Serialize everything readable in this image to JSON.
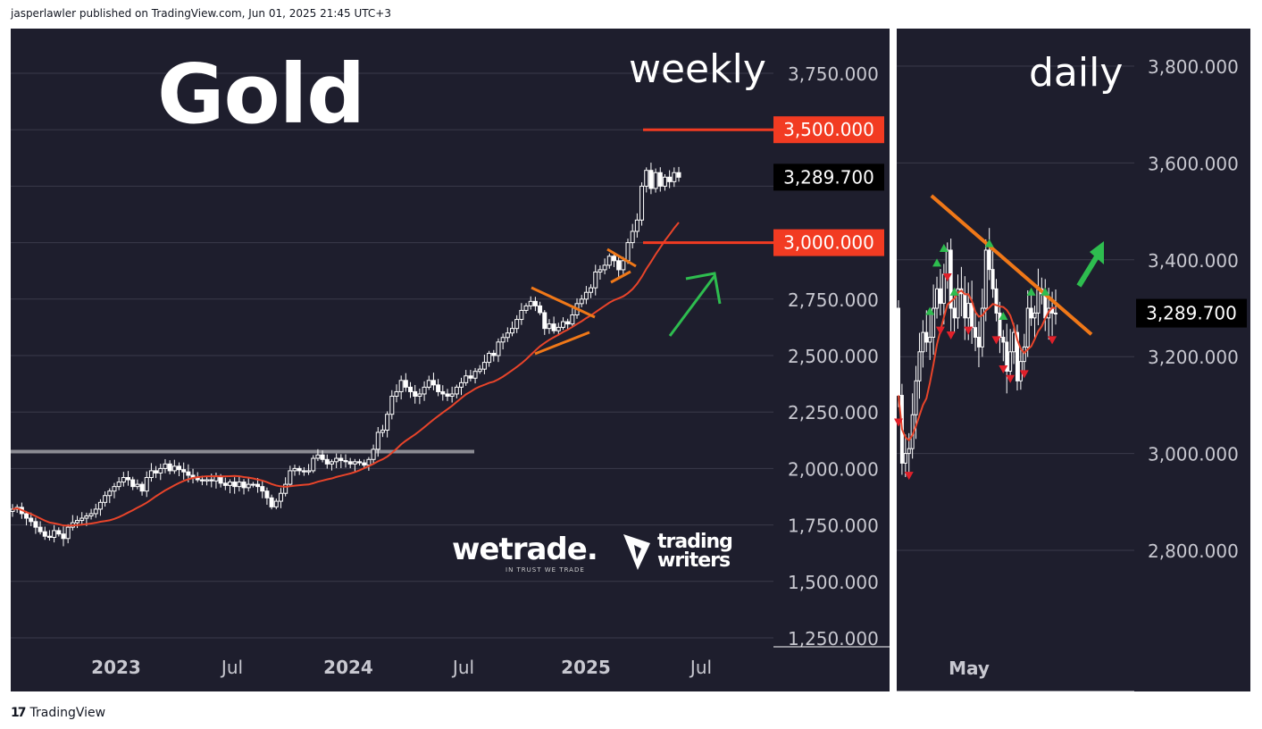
{
  "header": {
    "published_line": "jasperlawler published on TradingView.com, Jun 01, 2025 21:45 UTC+3"
  },
  "footer": {
    "brand": "TradingView",
    "brand_icon": "tradingview-logo-icon"
  },
  "overlay": {
    "title": "Gold",
    "logos": {
      "wetrade": "wetrade.",
      "wetrade_tagline": "IN TRUST WE TRADE",
      "trading_writers_line1": "trading",
      "trading_writers_line2": "writers"
    }
  },
  "colors": {
    "background": "#1e1e2d",
    "candle": "#ffffff",
    "ma": "#e8442a",
    "level_line": "#f23b22",
    "trendline": "#f07818",
    "arrow_green": "#2ebd4f",
    "grey_line": "#8c8c94"
  },
  "chart_data": [
    {
      "panel": "weekly",
      "type": "candlestick",
      "timeframe_label": "weekly",
      "x_tick_labels": [
        "2023",
        "Jul",
        "2024",
        "Jul",
        "2025",
        "Jul"
      ],
      "y_tick_labels": [
        "3,750.000",
        "3,500.000",
        "3,000.000",
        "2,750.000",
        "2,500.000",
        "2,250.000",
        "2,000.000",
        "1,750.000",
        "1,500.000",
        "1,250.000"
      ],
      "ylim": [
        1250,
        3900
      ],
      "price_labels": [
        {
          "value": 3500,
          "label": "3,500.000",
          "style": "red"
        },
        {
          "value": 3289.7,
          "label": "3,289.700",
          "style": "black"
        },
        {
          "value": 3000,
          "label": "3,000.000",
          "style": "red"
        }
      ],
      "horizontal_levels": [
        {
          "value": 3500,
          "color": "#f23b22"
        },
        {
          "value": 3000,
          "color": "#f23b22"
        },
        {
          "value": 2075,
          "color": "#8c8c94"
        }
      ],
      "ma_series_name": "",
      "closes": [
        1820,
        1828,
        1800,
        1780,
        1765,
        1740,
        1720,
        1700,
        1695,
        1725,
        1710,
        1690,
        1740,
        1760,
        1770,
        1780,
        1790,
        1800,
        1820,
        1850,
        1880,
        1900,
        1920,
        1940,
        1960,
        1950,
        1920,
        1930,
        1900,
        1960,
        1990,
        1980,
        2000,
        2020,
        1990,
        2010,
        1995,
        1985,
        1970,
        1960,
        1950,
        1945,
        1950,
        1945,
        1965,
        1935,
        1925,
        1940,
        1920,
        1940,
        1915,
        1930,
        1930,
        1920,
        1900,
        1870,
        1830,
        1855,
        1890,
        1930,
        1990,
        2000,
        1990,
        1985,
        1990,
        2045,
        2060,
        2040,
        2020,
        2030,
        2045,
        2035,
        2030,
        2020,
        2030,
        2025,
        2015,
        2040,
        2085,
        2160,
        2170,
        2240,
        2320,
        2340,
        2390,
        2360,
        2340,
        2320,
        2330,
        2360,
        2390,
        2370,
        2340,
        2330,
        2320,
        2330,
        2360,
        2380,
        2410,
        2400,
        2430,
        2440,
        2470,
        2510,
        2500,
        2560,
        2580,
        2600,
        2620,
        2660,
        2700,
        2720,
        2740,
        2720,
        2690,
        2620,
        2640,
        2610,
        2625,
        2650,
        2640,
        2680,
        2730,
        2750,
        2780,
        2800,
        2870,
        2880,
        2900,
        2940,
        2920,
        2880,
        2920,
        3000,
        3050,
        3100,
        3250,
        3320,
        3240,
        3310,
        3250,
        3290,
        3270,
        3310,
        3289.7
      ]
    },
    {
      "panel": "daily",
      "type": "candlestick",
      "timeframe_label": "daily",
      "x_tick_labels": [
        "May"
      ],
      "y_tick_labels": [
        "3,800.000",
        "3,600.000",
        "3,400.000",
        "3,200.000",
        "3,000.000",
        "2,800.000"
      ],
      "ylim": [
        2570,
        3870
      ],
      "price_labels": [
        {
          "value": 3289.7,
          "label": "3,289.700",
          "style": "black"
        }
      ],
      "closes": [
        3120,
        2980,
        3000,
        3010,
        3080,
        3150,
        3210,
        3250,
        3230,
        3240,
        3300,
        3340,
        3310,
        3370,
        3420,
        3300,
        3280,
        3340,
        3330,
        3280,
        3310,
        3260,
        3240,
        3220,
        3300,
        3420,
        3380,
        3340,
        3290,
        3240,
        3230,
        3170,
        3210,
        3250,
        3150,
        3190,
        3220,
        3300,
        3280,
        3290,
        3340,
        3330,
        3280,
        3300,
        3290,
        3289.7
      ],
      "trendline": {
        "from": {
          "index": 13,
          "value": 3510
        },
        "to": {
          "index": 45,
          "value": 3310
        }
      },
      "up_markers_at_index": [
        9,
        11,
        13,
        16,
        26,
        30,
        38,
        42
      ],
      "down_markers_at_index": [
        0,
        3,
        12,
        14,
        15,
        20,
        28,
        30,
        32,
        36,
        44
      ]
    }
  ]
}
